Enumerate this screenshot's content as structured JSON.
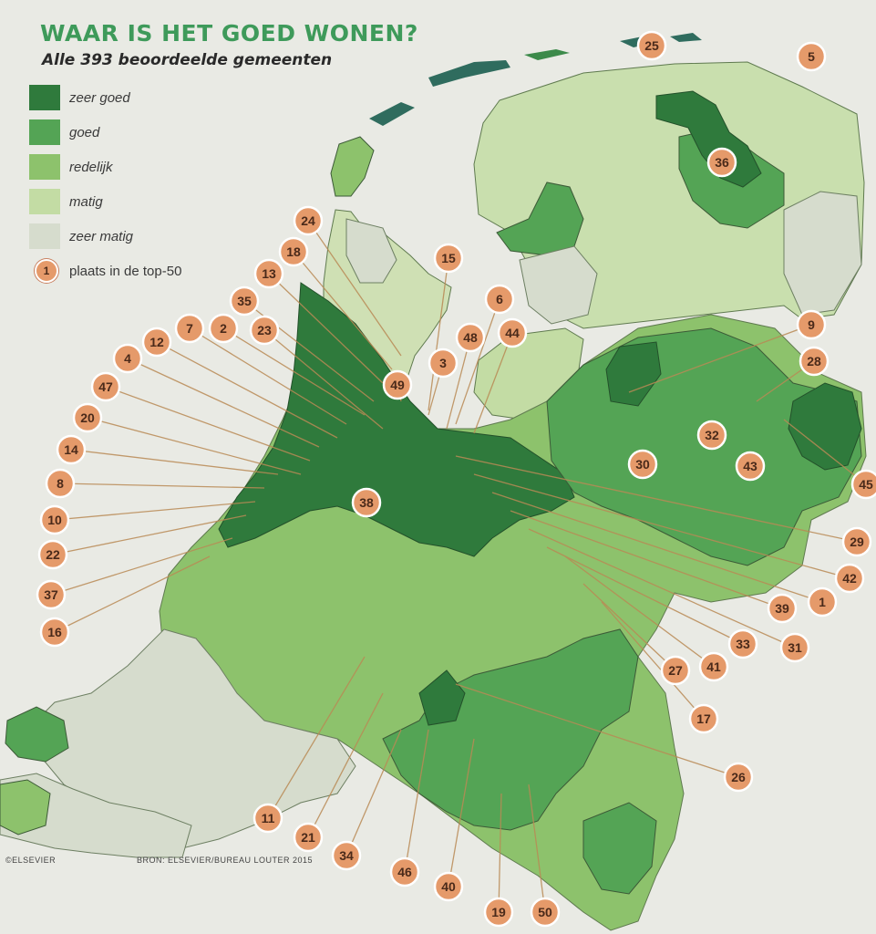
{
  "title": "WAAR IS HET GOED WONEN?",
  "subtitle": "Alle 393 beoordeelde gemeenten",
  "legend": {
    "classes": [
      {
        "label": "zeer goed",
        "color": "#2f7a3c"
      },
      {
        "label": "goed",
        "color": "#54a455"
      },
      {
        "label": "redelijk",
        "color": "#8dc26c"
      },
      {
        "label": "matig",
        "color": "#c3dca4"
      },
      {
        "label": "zeer matig",
        "color": "#d6dccd"
      }
    ],
    "top50_sample_number": "1",
    "top50_label": "plaats in de top-50",
    "badge_color": "#e59a6a"
  },
  "credit": "©ELSEVIER",
  "source": "BRON: ELSEVIER/BUREAU LOUTER 2015",
  "badges": [
    "25",
    "5",
    "36",
    "24",
    "18",
    "13",
    "35",
    "2",
    "23",
    "7",
    "12",
    "4",
    "47",
    "20",
    "14",
    "8",
    "10",
    "22",
    "37",
    "16",
    "15",
    "6",
    "44",
    "48",
    "3",
    "49",
    "9",
    "28",
    "32",
    "43",
    "45",
    "30",
    "38",
    "29",
    "42",
    "1",
    "39",
    "31",
    "33",
    "41",
    "27",
    "17",
    "26",
    "11",
    "21",
    "34",
    "46",
    "40",
    "19",
    "50"
  ]
}
